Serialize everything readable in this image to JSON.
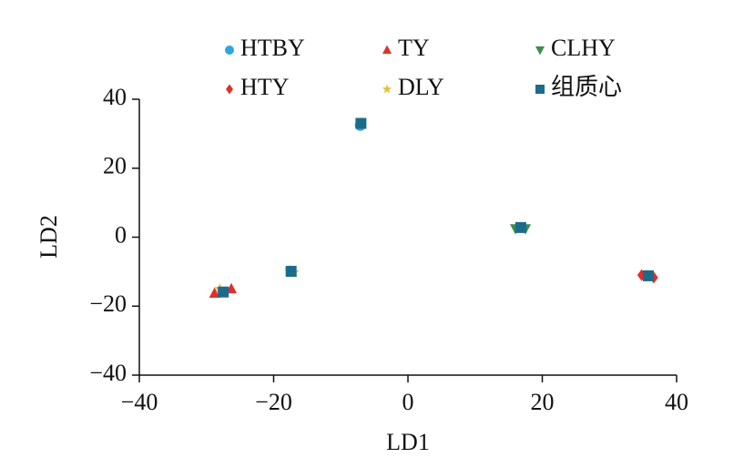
{
  "chart_data": {
    "type": "scatter",
    "xlabel": "LD1",
    "ylabel": "LD2",
    "xlim": [
      -40,
      40
    ],
    "xticks": [
      {
        "value": -40,
        "label": "−40"
      },
      {
        "value": -20,
        "label": "−20"
      },
      0,
      20,
      40
    ],
    "ylim": [
      -40,
      40
    ],
    "yticks": [
      {
        "value": -40,
        "label": "−40"
      },
      {
        "value": -20,
        "label": "−20"
      },
      0,
      20,
      40
    ],
    "legend": "top",
    "series": [
      {
        "name": "HTBY",
        "color": "#2ea7dc",
        "marker": "circle",
        "x": [
          -7.1
        ],
        "values": [
          32.4
        ]
      },
      {
        "name": "TY",
        "color": "#e0302a",
        "marker": "triangle",
        "x": [
          -28.8,
          -26.3
        ],
        "values": [
          -16.3,
          -15
        ]
      },
      {
        "name": "CLHY",
        "color": "#3a8f4e",
        "marker": "triangle-down",
        "x": [
          16,
          17.5
        ],
        "values": [
          2.5,
          2.5
        ]
      },
      {
        "name": "HTY",
        "color": "#e0302a",
        "marker": "diamond",
        "x": [
          34.8,
          36.6
        ],
        "values": [
          -11,
          -11.7
        ]
      },
      {
        "name": "DLY",
        "color": "#e6c030",
        "marker": "star",
        "x": [
          -17.6,
          -17,
          -28
        ],
        "values": [
          -9.6,
          -10.2,
          -15
        ]
      },
      {
        "name": "组质心",
        "color": "#1b6c8c",
        "marker": "square",
        "x": [
          -7,
          -27.5,
          -17.4,
          16.8,
          35.8
        ],
        "values": [
          33,
          -15.9,
          -9.9,
          2.8,
          -11.2
        ]
      }
    ]
  }
}
